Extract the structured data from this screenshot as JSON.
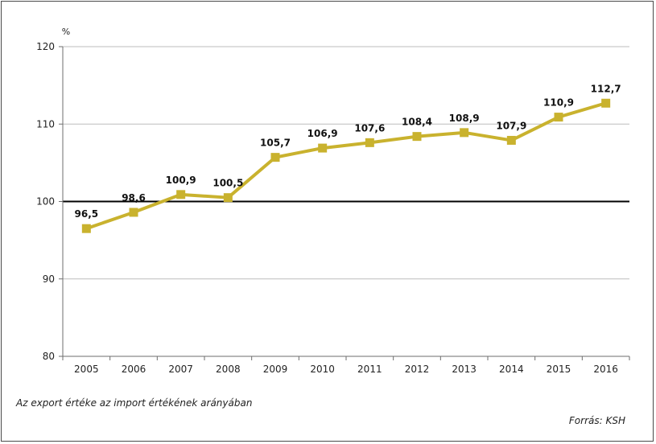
{
  "chart_data": {
    "type": "line",
    "unit": "%",
    "categories": [
      "2005",
      "2006",
      "2007",
      "2008",
      "2009",
      "2010",
      "2011",
      "2012",
      "2013",
      "2014",
      "2015",
      "2016"
    ],
    "series": [
      {
        "values": [
          96.5,
          98.6,
          100.9,
          100.5,
          105.7,
          106.9,
          107.6,
          108.4,
          108.9,
          107.9,
          110.9,
          112.7
        ]
      }
    ],
    "data_labels": [
      "96,5",
      "98,6",
      "100,9",
      "100,5",
      "105,7",
      "106,9",
      "107,6",
      "108,4",
      "108,9",
      "107,9",
      "110,9",
      "112,7"
    ],
    "y_ticks": [
      80,
      90,
      100,
      110,
      120
    ],
    "y_tick_labels": [
      "80",
      "90",
      "100",
      "110",
      "120"
    ],
    "ylim": [
      80,
      120
    ],
    "reference_line": 100,
    "grid": true,
    "line_color": "#c9b22e",
    "reference_color": "#000000"
  },
  "note": "Az export értéke az import értékének arányában",
  "source": "Forrás: KSH"
}
